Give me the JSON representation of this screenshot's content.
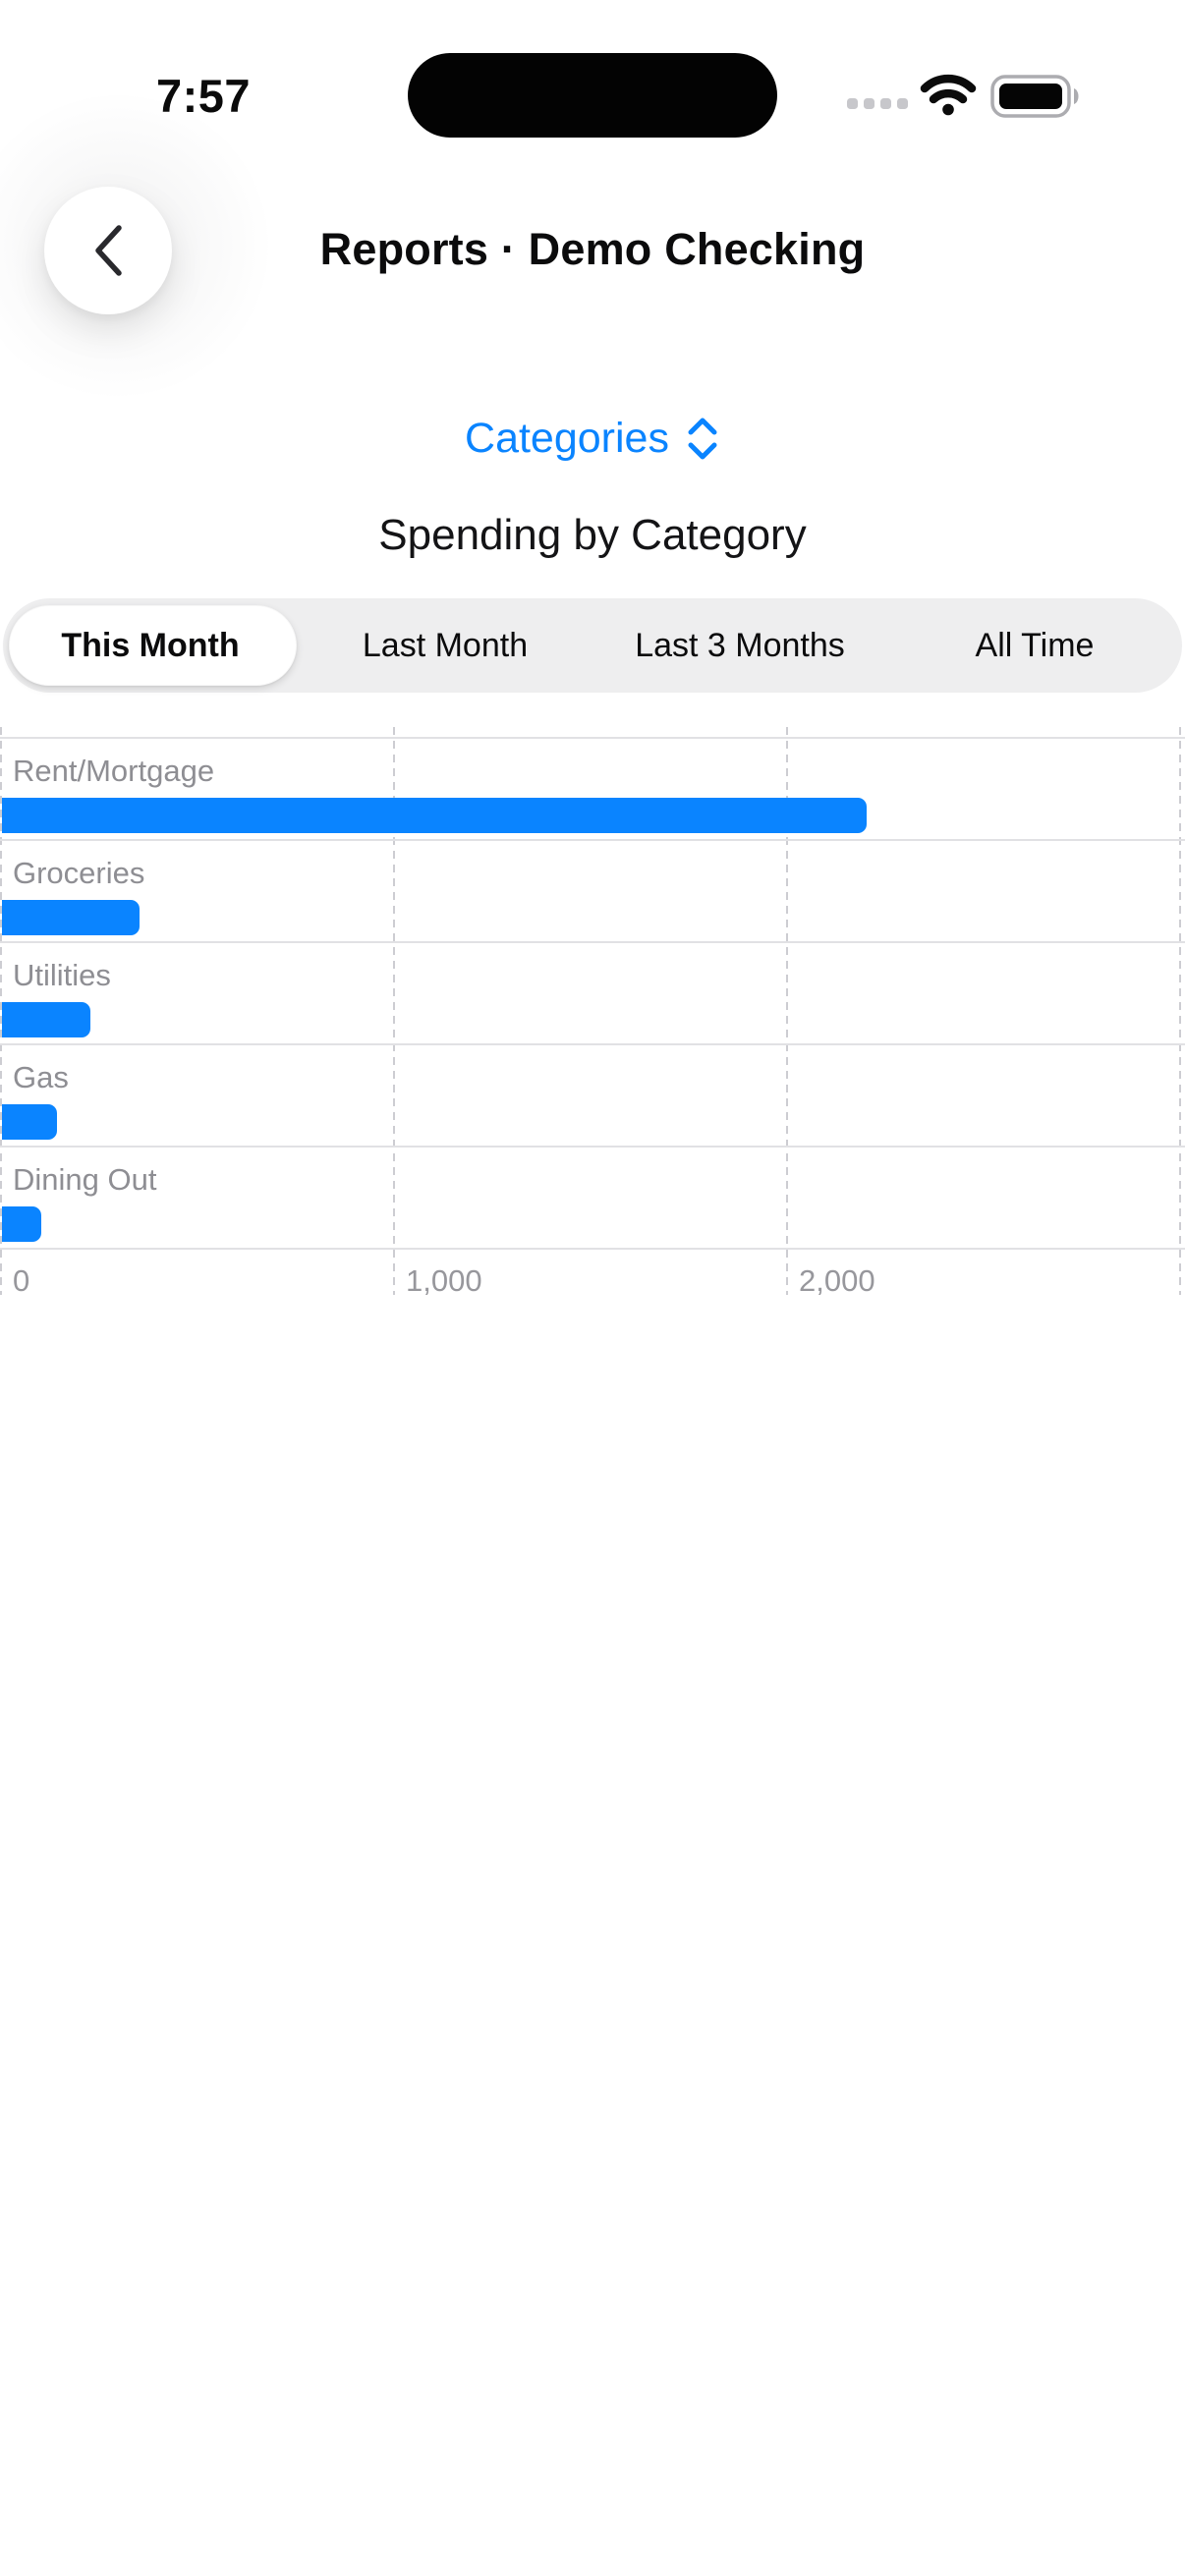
{
  "status_bar": {
    "time": "7:57",
    "cellular_icon": "signal-dots",
    "wifi_icon": "wifi",
    "battery_icon": "battery-full"
  },
  "header": {
    "back_icon": "chevron-left",
    "title": "Reports · Demo Checking"
  },
  "report_type_picker": {
    "label": "Categories",
    "icon": "chevron-up-down"
  },
  "section": {
    "title": "Spending by Category"
  },
  "time_range": {
    "selected_index": 0,
    "options": [
      "This Month",
      "Last Month",
      "Last 3 Months",
      "All Time"
    ]
  },
  "chart_data": {
    "type": "bar",
    "orientation": "horizontal",
    "title": "Spending by Category",
    "categories": [
      "Rent/Mortgage",
      "Groceries",
      "Utilities",
      "Gas",
      "Dining Out"
    ],
    "values": [
      2200,
      350,
      225,
      140,
      100
    ],
    "xlabel": "",
    "ylabel": "",
    "x_axis": {
      "min": 0,
      "max": 3000,
      "gridline_values": [
        0,
        1000,
        2000,
        3000
      ],
      "tick_labels": [
        "0",
        "1,000",
        "2,000"
      ],
      "tick_label_values": [
        0,
        1000,
        2000
      ],
      "gridline_style": "dashed"
    },
    "legend": null,
    "bar_color": "#0A84FF"
  },
  "colors": {
    "accent": "#0A84FF",
    "bar": "#0A84FF",
    "label_gray": "#8E8E93",
    "axis_gray": "#97979C",
    "separator": "#E1E1E4",
    "dash": "#CDCDD2",
    "segmented_bg": "#EEEEEF",
    "island": "#000000"
  }
}
